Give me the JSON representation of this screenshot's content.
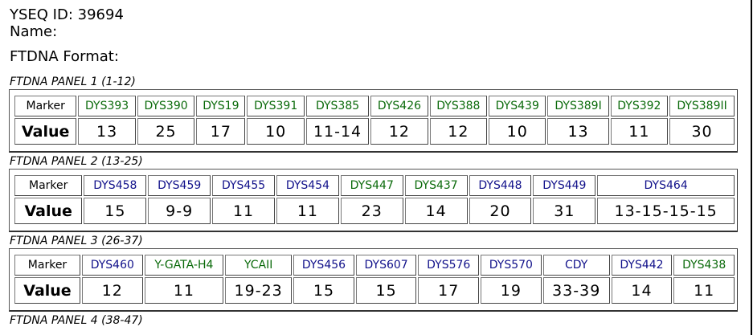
{
  "header": {
    "yseq_id": "YSEQ ID: 39694",
    "name": "Name:",
    "format": "FTDNA Format:"
  },
  "colors": {
    "green": "#0a6a0a",
    "blue": "#10108a",
    "text": "#000000"
  },
  "panels": [
    {
      "caption": "FTDNA PANEL 1 (1-12)",
      "marker_label": "Marker",
      "value_label": "Value",
      "markers": [
        {
          "name": "DYS393",
          "value": "13",
          "color": "green"
        },
        {
          "name": "DYS390",
          "value": "25",
          "color": "green"
        },
        {
          "name": "DYS19",
          "value": "17",
          "color": "green"
        },
        {
          "name": "DYS391",
          "value": "10",
          "color": "green"
        },
        {
          "name": "DYS385",
          "value": "11-14",
          "color": "green"
        },
        {
          "name": "DYS426",
          "value": "12",
          "color": "green"
        },
        {
          "name": "DYS388",
          "value": "12",
          "color": "green"
        },
        {
          "name": "DYS439",
          "value": "10",
          "color": "green"
        },
        {
          "name": "DYS389I",
          "value": "13",
          "color": "green"
        },
        {
          "name": "DYS392",
          "value": "11",
          "color": "green"
        },
        {
          "name": "DYS389II",
          "value": "30",
          "color": "green"
        }
      ]
    },
    {
      "caption": "FTDNA PANEL 2 (13-25)",
      "marker_label": "Marker",
      "value_label": "Value",
      "markers": [
        {
          "name": "DYS458",
          "value": "15",
          "color": "blue"
        },
        {
          "name": "DYS459",
          "value": "9-9",
          "color": "blue"
        },
        {
          "name": "DYS455",
          "value": "11",
          "color": "blue"
        },
        {
          "name": "DYS454",
          "value": "11",
          "color": "blue"
        },
        {
          "name": "DYS447",
          "value": "23",
          "color": "green"
        },
        {
          "name": "DYS437",
          "value": "14",
          "color": "green"
        },
        {
          "name": "DYS448",
          "value": "20",
          "color": "blue"
        },
        {
          "name": "DYS449",
          "value": "31",
          "color": "blue"
        },
        {
          "name": "DYS464",
          "value": "13-15-15-15",
          "color": "blue"
        }
      ]
    },
    {
      "caption": "FTDNA PANEL 3 (26-37)",
      "marker_label": "Marker",
      "value_label": "Value",
      "markers": [
        {
          "name": "DYS460",
          "value": "12",
          "color": "blue"
        },
        {
          "name": "Y-GATA-H4",
          "value": "11",
          "color": "green"
        },
        {
          "name": "YCAII",
          "value": "19-23",
          "color": "green"
        },
        {
          "name": "DYS456",
          "value": "15",
          "color": "blue"
        },
        {
          "name": "DYS607",
          "value": "15",
          "color": "blue"
        },
        {
          "name": "DYS576",
          "value": "17",
          "color": "blue"
        },
        {
          "name": "DYS570",
          "value": "19",
          "color": "blue"
        },
        {
          "name": "CDY",
          "value": "33-39",
          "color": "blue"
        },
        {
          "name": "DYS442",
          "value": "14",
          "color": "blue"
        },
        {
          "name": "DYS438",
          "value": "11",
          "color": "green"
        }
      ]
    },
    {
      "caption": "FTDNA PANEL 4 (38-47)",
      "markers": []
    }
  ]
}
